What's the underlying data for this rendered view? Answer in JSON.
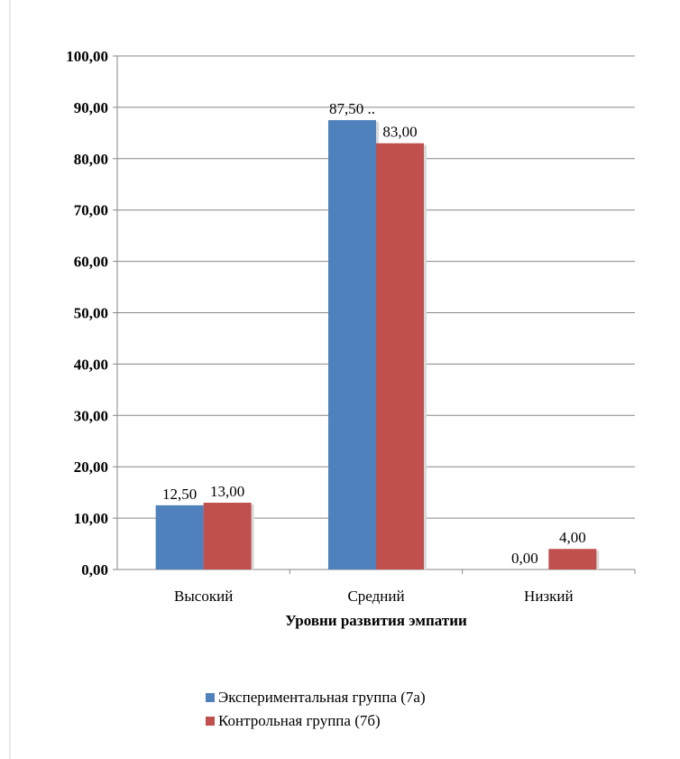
{
  "chart_data": {
    "type": "bar",
    "categories": [
      "Высокий",
      "Средний",
      "Низкий"
    ],
    "series": [
      {
        "name": "Экспериментальная группа (7а)",
        "values": [
          12.5,
          87.5,
          0.0
        ],
        "labels": [
          "12,50",
          "87,50 ..",
          "0,00"
        ],
        "color": "#4F81BD"
      },
      {
        "name": "Контрольная группа (7б)",
        "values": [
          13.0,
          83.0,
          4.0
        ],
        "labels": [
          "13,00",
          "83,00",
          "4,00"
        ],
        "color": "#C0504D"
      }
    ],
    "xlabel": "Уровни  развития эмпатии",
    "ylabel": "",
    "ylim": [
      0,
      100
    ],
    "yticks": [
      0,
      10,
      20,
      30,
      40,
      50,
      60,
      70,
      80,
      90,
      100
    ],
    "ytick_labels": [
      "0,00",
      "10,00",
      "20,00",
      "30,00",
      "40,00",
      "50,00",
      "60,00",
      "70,00",
      "80,00",
      "90,00",
      "100,00"
    ],
    "grid": true,
    "legend": "bottom"
  }
}
